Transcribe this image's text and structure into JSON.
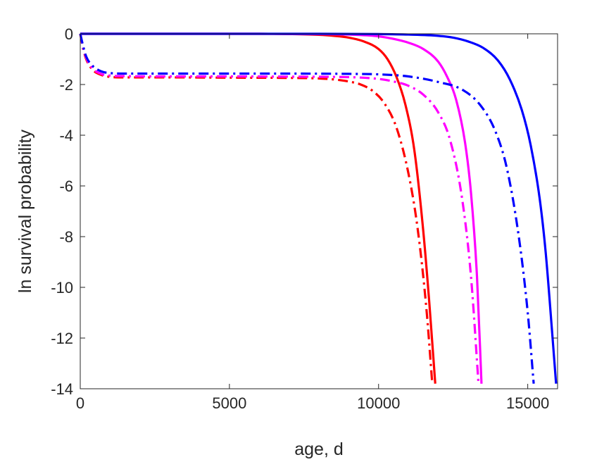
{
  "chart_data": {
    "type": "line",
    "xlabel": "age, d",
    "ylabel": "ln survival probability",
    "xlim": [
      0,
      16000
    ],
    "ylim": [
      -14,
      0
    ],
    "xticks": [
      0,
      5000,
      10000,
      15000
    ],
    "xtick_labels": [
      "0",
      "5000",
      "10000",
      "15000"
    ],
    "yticks": [
      0,
      -2,
      -4,
      -6,
      -8,
      -10,
      -12,
      -14
    ],
    "ytick_labels": [
      "0",
      "-2",
      "-4",
      "-6",
      "-8",
      "-10",
      "-12",
      "-14"
    ],
    "grid": false,
    "legend": "none",
    "series": [
      {
        "color": "#ff0000",
        "dash": "solid",
        "x": [
          0,
          2000,
          4000,
          6000,
          7000,
          8000,
          8500,
          9000,
          9500,
          10000,
          10300,
          10600,
          10900,
          11200,
          11500,
          11700,
          11900
        ],
        "y": [
          0,
          0,
          0,
          0,
          -0.01,
          -0.04,
          -0.08,
          -0.15,
          -0.3,
          -0.6,
          -1.0,
          -1.7,
          -2.8,
          -4.6,
          -7.8,
          -10.6,
          -13.8
        ]
      },
      {
        "color": "#ff00ff",
        "dash": "solid",
        "x": [
          0,
          2000,
          4000,
          6000,
          8000,
          9000,
          10000,
          10500,
          11000,
          11500,
          12000,
          12300,
          12600,
          12900,
          13100,
          13300,
          13450
        ],
        "y": [
          0,
          0,
          0,
          0,
          -0.01,
          -0.03,
          -0.1,
          -0.2,
          -0.35,
          -0.6,
          -1.1,
          -1.7,
          -2.6,
          -4.3,
          -6.3,
          -9.6,
          -13.8
        ]
      },
      {
        "color": "#0000ff",
        "dash": "solid",
        "x": [
          0,
          4000,
          8000,
          10000,
          11000,
          12000,
          12500,
          13000,
          13500,
          14000,
          14400,
          14800,
          15100,
          15400,
          15600,
          15800,
          15950
        ],
        "y": [
          0,
          0,
          0,
          -0.01,
          -0.03,
          -0.08,
          -0.15,
          -0.3,
          -0.55,
          -1.05,
          -1.8,
          -3.0,
          -4.4,
          -6.5,
          -8.6,
          -11.5,
          -13.8
        ]
      },
      {
        "color": "#ff0000",
        "dash": "dashdot",
        "x": [
          0,
          100,
          200,
          400,
          700,
          1000,
          1500,
          3000,
          5000,
          7000,
          8000,
          8500,
          9000,
          9400,
          9800,
          10200,
          10600,
          11000,
          11300,
          11600,
          11800
        ],
        "y": [
          0,
          -0.6,
          -1.0,
          -1.4,
          -1.62,
          -1.7,
          -1.72,
          -1.72,
          -1.73,
          -1.74,
          -1.76,
          -1.8,
          -1.88,
          -2.0,
          -2.25,
          -2.75,
          -3.7,
          -5.5,
          -7.6,
          -10.8,
          -13.8
        ]
      },
      {
        "color": "#ff00ff",
        "dash": "dashdot",
        "x": [
          0,
          100,
          200,
          400,
          700,
          1000,
          1500,
          3000,
          5000,
          7000,
          9000,
          10000,
          10500,
          11000,
          11500,
          12000,
          12400,
          12800,
          13100,
          13350
        ],
        "y": [
          0,
          -0.55,
          -0.95,
          -1.35,
          -1.58,
          -1.65,
          -1.67,
          -1.68,
          -1.68,
          -1.69,
          -1.71,
          -1.78,
          -1.88,
          -2.05,
          -2.4,
          -3.1,
          -4.2,
          -6.5,
          -9.6,
          -13.8
        ]
      },
      {
        "color": "#0000ff",
        "dash": "dashdot",
        "x": [
          0,
          100,
          200,
          400,
          700,
          1000,
          1500,
          3000,
          5000,
          7000,
          9000,
          10000,
          11000,
          12000,
          12800,
          13400,
          13900,
          14300,
          14700,
          15000,
          15200
        ],
        "y": [
          0,
          -0.5,
          -0.9,
          -1.25,
          -1.48,
          -1.55,
          -1.57,
          -1.57,
          -1.57,
          -1.57,
          -1.58,
          -1.6,
          -1.68,
          -1.9,
          -2.2,
          -2.8,
          -3.8,
          -5.3,
          -8.0,
          -11.0,
          -13.8
        ]
      }
    ]
  }
}
